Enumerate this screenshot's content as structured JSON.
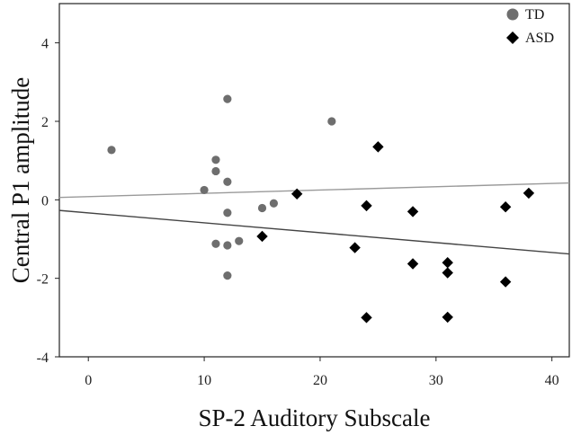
{
  "chart_data": {
    "type": "scatter",
    "title": "",
    "xlabel": "SP-2 Auditory Subscale",
    "ylabel": "Central P1 amplitude",
    "xlim": [
      -2.5,
      41.5
    ],
    "ylim": [
      -4,
      5
    ],
    "xticks": [
      0,
      10,
      20,
      30,
      40
    ],
    "yticks": [
      -4,
      -2,
      0,
      2,
      4
    ],
    "grid": false,
    "legend_position": "top-right",
    "series": [
      {
        "name": "TD",
        "marker": "circle",
        "color": "#6e6e6e",
        "points": [
          {
            "x": 2,
            "y": 1.27
          },
          {
            "x": 10,
            "y": 0.25
          },
          {
            "x": 11,
            "y": 1.02
          },
          {
            "x": 11,
            "y": 0.73
          },
          {
            "x": 11,
            "y": -1.12
          },
          {
            "x": 12,
            "y": 2.57
          },
          {
            "x": 12,
            "y": 0.46
          },
          {
            "x": 12,
            "y": -0.33
          },
          {
            "x": 12,
            "y": -1.16
          },
          {
            "x": 12,
            "y": -1.93
          },
          {
            "x": 13,
            "y": -1.05
          },
          {
            "x": 15,
            "y": -0.21
          },
          {
            "x": 16,
            "y": -0.09
          },
          {
            "x": 21,
            "y": 2.0
          }
        ],
        "fit_line": {
          "x": [
            -2.5,
            41.5
          ],
          "y": [
            0.06,
            0.43
          ],
          "color": "#9a9a9a"
        }
      },
      {
        "name": "ASD",
        "marker": "diamond",
        "color": "#000000",
        "points": [
          {
            "x": 15,
            "y": -0.93
          },
          {
            "x": 18,
            "y": 0.15
          },
          {
            "x": 23,
            "y": -1.22
          },
          {
            "x": 24,
            "y": -0.15
          },
          {
            "x": 24,
            "y": -3.0
          },
          {
            "x": 25,
            "y": 1.35
          },
          {
            "x": 28,
            "y": -0.3
          },
          {
            "x": 28,
            "y": -1.63
          },
          {
            "x": 31,
            "y": -1.6
          },
          {
            "x": 31,
            "y": -1.86
          },
          {
            "x": 31,
            "y": -2.99
          },
          {
            "x": 36,
            "y": -0.18
          },
          {
            "x": 36,
            "y": -2.09
          },
          {
            "x": 38,
            "y": 0.17
          }
        ],
        "fit_line": {
          "x": [
            -2.5,
            41.5
          ],
          "y": [
            -0.27,
            -1.38
          ],
          "color": "#444444"
        }
      }
    ]
  }
}
